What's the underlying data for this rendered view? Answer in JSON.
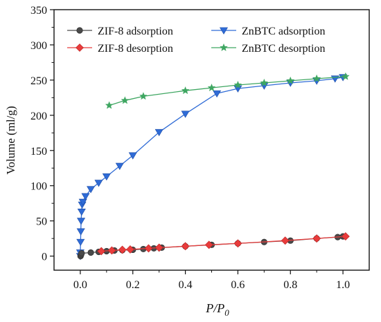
{
  "chart_data": {
    "type": "scatter",
    "xlabel": "P/P",
    "xlabel_subscript": "0",
    "ylabel": "Volume (ml/g)",
    "xlim": [
      -0.1,
      1.1
    ],
    "ylim": [
      -20,
      350
    ],
    "xticks": [
      0.0,
      0.2,
      0.4,
      0.6,
      0.8,
      1.0
    ],
    "xtick_labels": [
      "0.0",
      "0.2",
      "0.4",
      "0.6",
      "0.8",
      "1.0"
    ],
    "yticks": [
      0,
      50,
      100,
      150,
      200,
      250,
      300,
      350
    ],
    "ytick_labels": [
      "0",
      "50",
      "100",
      "150",
      "200",
      "250",
      "300",
      "350"
    ],
    "grid": false,
    "legend_placement": "top",
    "series": [
      {
        "name": "ZIF-8 adsorption",
        "color": "#4a4a4a",
        "marker": "circle",
        "x": [
          0.001,
          0.003,
          0.005,
          0.04,
          0.07,
          0.1,
          0.13,
          0.16,
          0.2,
          0.24,
          0.28,
          0.31,
          0.4,
          0.5,
          0.6,
          0.7,
          0.8,
          0.9,
          0.98,
          1.0
        ],
        "y": [
          0,
          2,
          4,
          5,
          6,
          7,
          8,
          8.5,
          9,
          10,
          11,
          12,
          14,
          16,
          18,
          20,
          22,
          25,
          27,
          28
        ]
      },
      {
        "name": "ZIF-8 desorption",
        "color": "#e83c3c",
        "marker": "diamond",
        "x": [
          1.01,
          0.9,
          0.78,
          0.6,
          0.49,
          0.4,
          0.3,
          0.26,
          0.19,
          0.16,
          0.12,
          0.08
        ],
        "y": [
          28,
          25,
          22,
          18,
          16,
          14,
          12,
          11,
          9.5,
          9,
          8,
          7
        ]
      },
      {
        "name": "ZnBTC adsorption",
        "color": "#2f6bd6",
        "marker": "triangle-down",
        "x": [
          0.0,
          0.0,
          0.001,
          0.002,
          0.003,
          0.005,
          0.007,
          0.01,
          0.02,
          0.04,
          0.07,
          0.1,
          0.15,
          0.2,
          0.3,
          0.4,
          0.52,
          0.6,
          0.7,
          0.8,
          0.9,
          0.97,
          1.0
        ],
        "y": [
          0,
          5,
          20,
          35,
          50,
          63,
          73,
          77,
          85,
          95,
          104,
          113,
          128,
          143,
          176,
          202,
          231,
          238,
          242,
          246,
          249,
          252,
          254
        ]
      },
      {
        "name": "ZnBTC desorption",
        "color": "#3ea661",
        "marker": "star",
        "x": [
          1.01,
          0.9,
          0.8,
          0.7,
          0.6,
          0.5,
          0.4,
          0.24,
          0.17,
          0.11
        ],
        "y": [
          255,
          252,
          249,
          246,
          243,
          239,
          235,
          227,
          221,
          214
        ]
      }
    ]
  }
}
